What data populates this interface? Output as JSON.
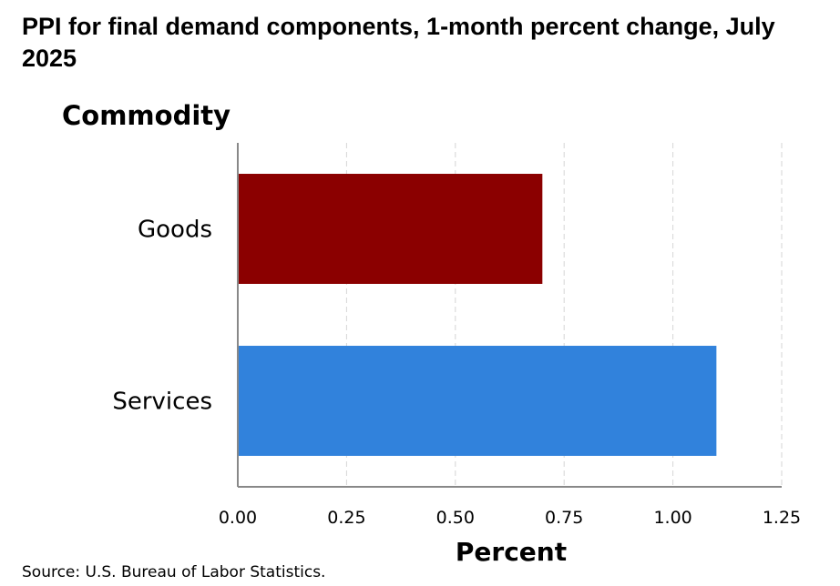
{
  "chart_data": {
    "type": "bar",
    "orientation": "horizontal",
    "title": "PPI for final demand components, 1-month percent change, July 2025",
    "ylabel": "Commodity",
    "xlabel": "Percent",
    "categories": [
      "Goods",
      "Services"
    ],
    "values": [
      0.7,
      1.1
    ],
    "colors": [
      "#8b0000",
      "#3182dc"
    ],
    "xlim": [
      0,
      1.25
    ],
    "xticks": [
      "0.00",
      "0.25",
      "0.50",
      "0.75",
      "1.00",
      "1.25"
    ],
    "grid": "vertical-dashed"
  },
  "footer": {
    "source": "Source: U.S. Bureau of Labor Statistics."
  }
}
